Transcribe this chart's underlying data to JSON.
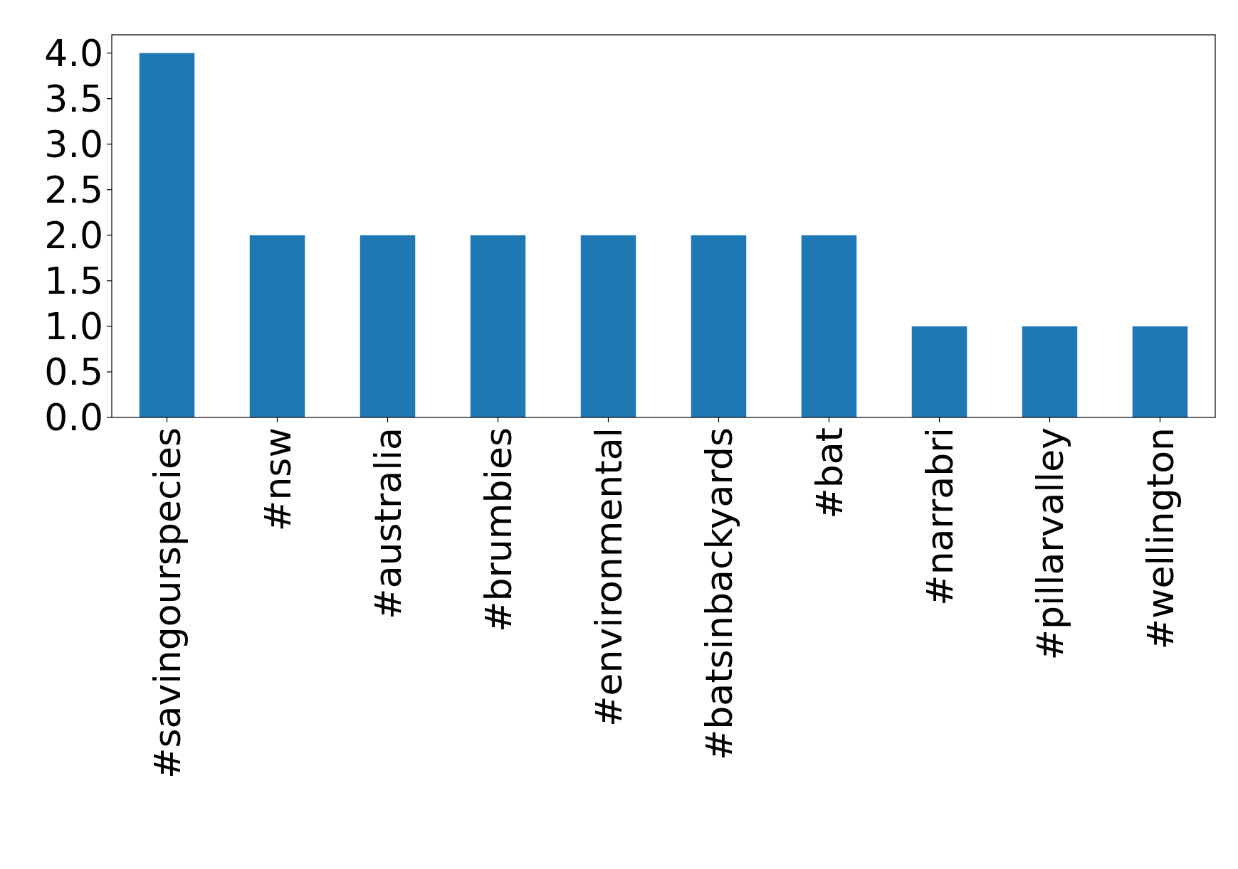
{
  "chart_data": {
    "type": "bar",
    "categories": [
      "#savingourspecies",
      "#nsw",
      "#australia",
      "#brumbies",
      "#environmental",
      "#batsinbackyards",
      "#bat",
      "#narrabri",
      "#pillarvalley",
      "#wellington"
    ],
    "values": [
      4,
      2,
      2,
      2,
      2,
      2,
      2,
      1,
      1,
      1
    ],
    "color": "#1f77b4",
    "ylim": [
      0,
      4.2
    ],
    "yticks": [
      {
        "value": 0,
        "label": "0.0"
      },
      {
        "value": 0.5,
        "label": "0.5"
      },
      {
        "value": 1,
        "label": "1.0"
      },
      {
        "value": 1.5,
        "label": "1.5"
      },
      {
        "value": 2,
        "label": "2.0"
      },
      {
        "value": 2.5,
        "label": "2.5"
      },
      {
        "value": 3,
        "label": "3.0"
      },
      {
        "value": 3.5,
        "label": "3.5"
      },
      {
        "value": 4,
        "label": "4.0"
      }
    ],
    "grid": false
  }
}
